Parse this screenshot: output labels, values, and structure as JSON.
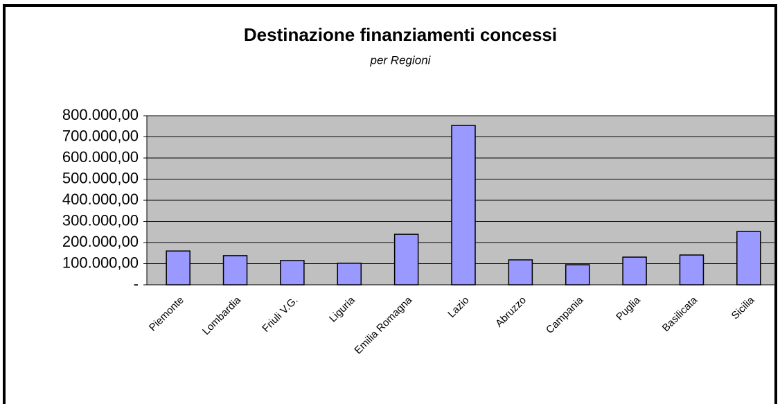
{
  "chart_data": {
    "type": "bar",
    "title": "Destinazione finanziamenti concessi",
    "subtitle": "per Regioni",
    "categories": [
      "Piemonte",
      "Lombardia",
      "Friuli V.G.",
      "Liguria",
      "Emilia Romagna",
      "Lazio",
      "Abruzzo",
      "Campania",
      "Puglia",
      "Basilicata",
      "Sicilia"
    ],
    "values": [
      160000,
      138000,
      115000,
      102000,
      239000,
      754000,
      118000,
      95000,
      131000,
      141000,
      252000
    ],
    "color": "#9999ff",
    "ylim": [
      0,
      800000
    ],
    "yticks": [
      {
        "value": 0,
        "label": "-"
      },
      {
        "value": 100000,
        "label": "100.000,00"
      },
      {
        "value": 200000,
        "label": "200.000,00"
      },
      {
        "value": 300000,
        "label": "300.000,00"
      },
      {
        "value": 400000,
        "label": "400.000,00"
      },
      {
        "value": 500000,
        "label": "500.000,00"
      },
      {
        "value": 600000,
        "label": "600.000,00"
      },
      {
        "value": 700000,
        "label": "700.000,00"
      },
      {
        "value": 800000,
        "label": "800.000,00"
      }
    ],
    "grid": true
  }
}
